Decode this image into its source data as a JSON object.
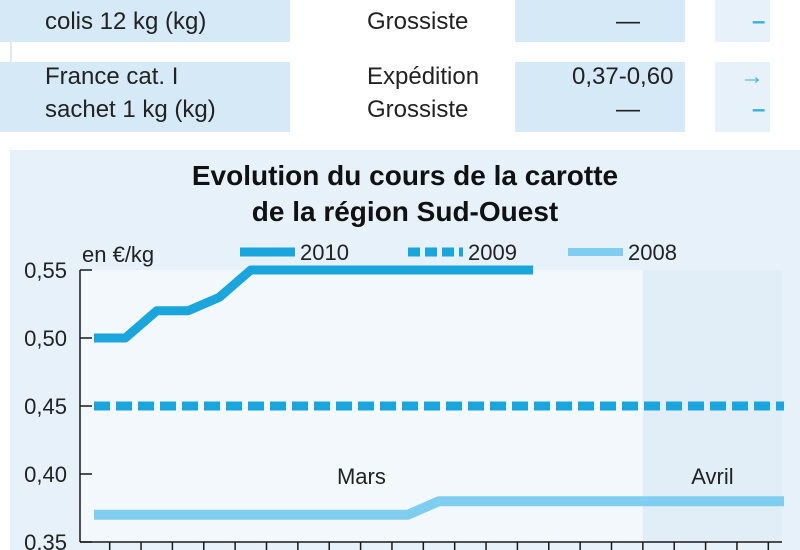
{
  "table": {
    "rows": [
      {
        "product_lines": [
          "",
          "colis 12 kg (kg)"
        ],
        "stages": [
          "",
          "Grossiste"
        ],
        "prices": [
          "",
          "—"
        ],
        "trends": [
          "",
          "–"
        ]
      },
      {
        "product_lines": [
          "France cat. I",
          "sachet 1 kg (kg)"
        ],
        "stages": [
          "Expédition",
          "Grossiste"
        ],
        "prices": [
          "0,37-0,60",
          "—"
        ],
        "trends": [
          "→",
          "–"
        ]
      }
    ]
  },
  "chart_data": {
    "type": "line",
    "title": [
      "Evolution du cours de la carotte",
      "de la région Sud-Ouest"
    ],
    "unit_label": "en €/kg",
    "ylim": [
      0.35,
      0.55
    ],
    "yticks": [
      "0,55",
      "0,50",
      "0,45",
      "0,40",
      "0,35"
    ],
    "ytick_values": [
      0.55,
      0.5,
      0.45,
      0.4,
      0.35
    ],
    "period_count": 23,
    "month_labels": [
      {
        "label": "Mars",
        "start": 0,
        "end": 18
      },
      {
        "label": "Avril",
        "start": 18,
        "end": 23
      }
    ],
    "legend_position": "top",
    "series": [
      {
        "name": "2010",
        "color": "#1aa5dc",
        "style": "solid",
        "values": [
          0.5,
          0.5,
          0.52,
          0.52,
          0.53,
          0.55,
          0.55,
          0.55,
          0.55,
          0.55,
          0.55,
          0.55,
          0.55,
          0.55,
          0.55
        ]
      },
      {
        "name": "2009",
        "color": "#1aa5dc",
        "style": "dashed",
        "values": [
          0.45,
          0.45,
          0.45,
          0.45,
          0.45,
          0.45,
          0.45,
          0.45,
          0.45,
          0.45,
          0.45,
          0.45,
          0.45,
          0.45,
          0.45,
          0.45,
          0.45,
          0.45,
          0.45,
          0.45,
          0.45,
          0.45,
          0.45
        ]
      },
      {
        "name": "2008",
        "color": "#7fcdef",
        "style": "solid",
        "values": [
          0.37,
          0.37,
          0.37,
          0.37,
          0.37,
          0.37,
          0.37,
          0.37,
          0.37,
          0.37,
          0.37,
          0.38,
          0.38,
          0.38,
          0.38,
          0.38,
          0.38,
          0.38,
          0.38,
          0.38,
          0.38,
          0.38,
          0.38
        ]
      }
    ],
    "colors": {
      "panel_background": "#e6f1fa",
      "plot_background": "#f2f8fc",
      "april_band": "#e1eef8",
      "grid": "#1a1a1a"
    }
  }
}
